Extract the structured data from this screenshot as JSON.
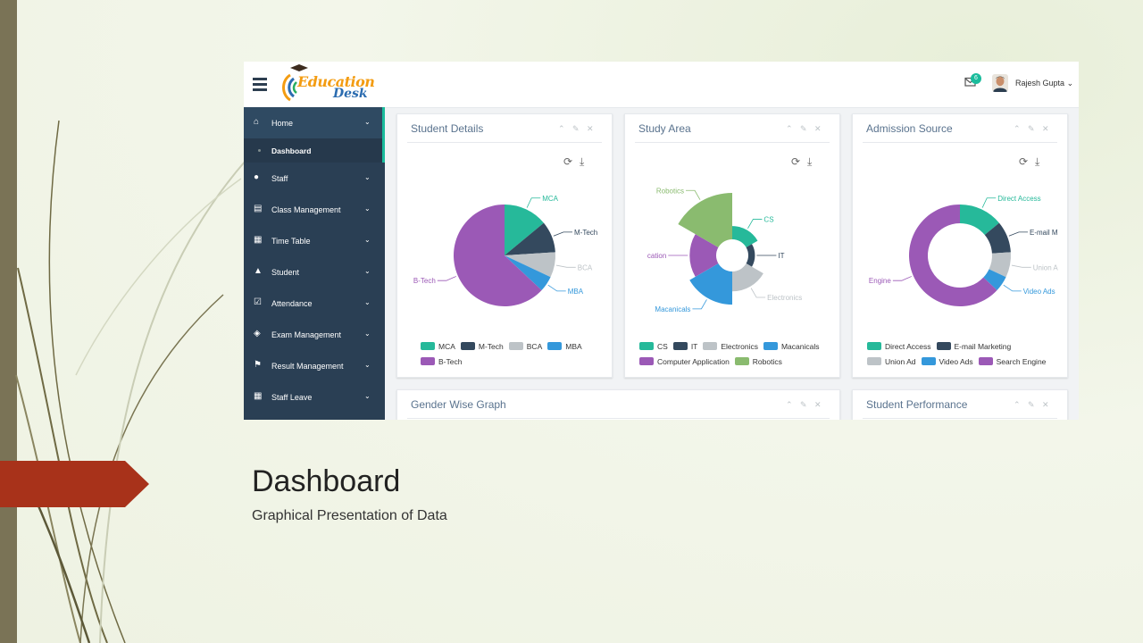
{
  "slide": {
    "title": "Dashboard",
    "subtitle": "Graphical Presentation of Data",
    "accent_color": "#a8321a"
  },
  "app": {
    "logo_line1": "Education",
    "logo_line2": "Desk",
    "mail_badge": "6",
    "user_name": "Rajesh Gupta",
    "user_chevron": "⌄"
  },
  "sidebar": {
    "items": [
      {
        "label": "Home",
        "icon": "home-icon",
        "glyph": "⌂"
      },
      {
        "label": "Staff",
        "icon": "user-icon",
        "glyph": "●"
      },
      {
        "label": "Class Management",
        "icon": "book-icon",
        "glyph": "▤"
      },
      {
        "label": "Time Table",
        "icon": "calendar-icon",
        "glyph": "▦"
      },
      {
        "label": "Student",
        "icon": "graduation-cap-icon",
        "glyph": "▲"
      },
      {
        "label": "Attendance",
        "icon": "check-square-icon",
        "glyph": "☑"
      },
      {
        "label": "Exam Management",
        "icon": "shield-icon",
        "glyph": "◈"
      },
      {
        "label": "Result Management",
        "icon": "flag-icon",
        "glyph": "⚑"
      },
      {
        "label": "Staff Leave",
        "icon": "table-icon",
        "glyph": "▦"
      }
    ],
    "sub_item": "Dashboard",
    "chevron": "⌄"
  },
  "panels": {
    "student_details": {
      "title": "Student Details"
    },
    "study_area": {
      "title": "Study Area"
    },
    "admission_source": {
      "title": "Admission Source"
    },
    "gender": {
      "title": "Gender Wise Graph"
    },
    "performance": {
      "title": "Student Performance"
    },
    "controls": {
      "collapse": "⌃",
      "settings": "✎",
      "close": "✕",
      "refresh": "⟳",
      "download": "⤓"
    }
  },
  "chart_data": [
    {
      "type": "pie",
      "title": "Student Details",
      "categories": [
        "MCA",
        "M-Tech",
        "BCA",
        "MBA",
        "B-Tech"
      ],
      "values": [
        14,
        10,
        8,
        5,
        63
      ],
      "colors": [
        "#26b99a",
        "#34495e",
        "#bdc3c7",
        "#3498db",
        "#9b59b6"
      ],
      "labels": [
        "MCA",
        "M-Tech",
        "BCA",
        "MBA",
        "B-Tech"
      ]
    },
    {
      "type": "pie",
      "variant": "nightingale-rose",
      "title": "Study Area",
      "categories": [
        "CS",
        "IT",
        "Electronics",
        "Macanicals",
        "Computer Application",
        "Robotics"
      ],
      "values": [
        10,
        5,
        15,
        25,
        20,
        35
      ],
      "colors": [
        "#26b99a",
        "#34495e",
        "#bdc3c7",
        "#3498db",
        "#9b59b6",
        "#8abb6f"
      ],
      "labels": [
        "CS",
        "IT",
        "Electronics",
        "Macanicals",
        "cation",
        "Robotics"
      ]
    },
    {
      "type": "pie",
      "variant": "donut",
      "title": "Admission Source",
      "categories": [
        "Direct Access",
        "E-mail Marketing",
        "Union Ad",
        "Video Ads",
        "Search Engine"
      ],
      "values": [
        14,
        10,
        8,
        5,
        63
      ],
      "colors": [
        "#26b99a",
        "#34495e",
        "#bdc3c7",
        "#3498db",
        "#9b59b6"
      ],
      "labels": [
        "Direct Access",
        "E-mail M",
        "Union A",
        "Video Ads",
        "Engine"
      ]
    }
  ]
}
